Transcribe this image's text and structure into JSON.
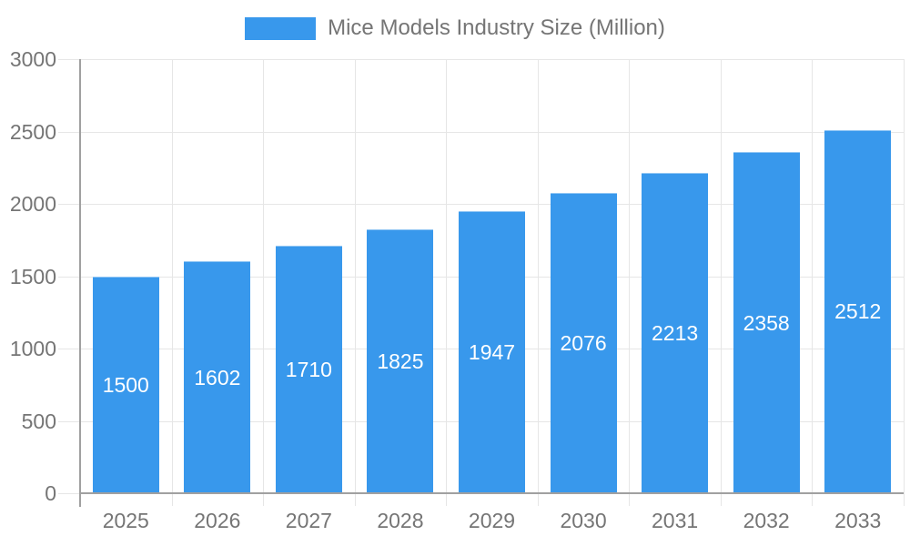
{
  "legend": {
    "swatch_icon": "series-color-swatch",
    "position": "top"
  },
  "colors": {
    "bar": "#3898EC",
    "grid": "#E6E6E6",
    "axis": "#A0A0A0",
    "label": "#757575",
    "value_label": "#FFFFFF",
    "background": "#FFFFFF"
  },
  "chart_data": {
    "type": "bar",
    "title": "Mice Models Industry Size (Million)",
    "categories": [
      "2025",
      "2026",
      "2027",
      "2028",
      "2029",
      "2030",
      "2031",
      "2032",
      "2033"
    ],
    "values": [
      1500,
      1602,
      1710,
      1825,
      1947,
      2076,
      2213,
      2358,
      2512
    ],
    "xlabel": "",
    "ylabel": "",
    "ylim": [
      0,
      3000
    ],
    "yticks": [
      0,
      500,
      1000,
      1500,
      2000,
      2500,
      3000
    ],
    "grid": true,
    "legend_position": "top",
    "value_label_position": "inside-center"
  }
}
